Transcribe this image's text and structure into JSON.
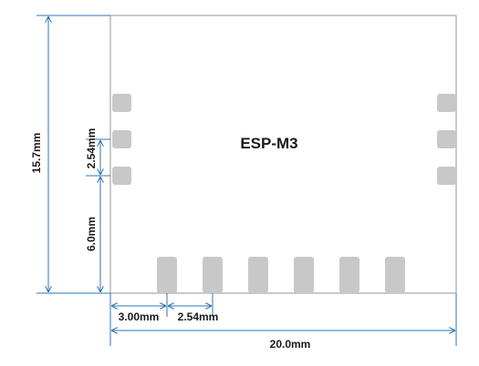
{
  "module": {
    "name": "ESP-M3",
    "outline_color": "#a6a6a6",
    "pad_color": "#c8c8c8",
    "left_pad_count": 3,
    "right_pad_count": 3,
    "bottom_pad_count": 6
  },
  "dimensions": {
    "height_total": "15.7mm",
    "pitch_vertical": "2.54mm",
    "left_pad_offset": "6.0mm",
    "bottom_first_offset": "3.00mm",
    "pitch_horizontal": "2.54mm",
    "width_total": "20.0mm",
    "line_color": "#2e74b5"
  }
}
